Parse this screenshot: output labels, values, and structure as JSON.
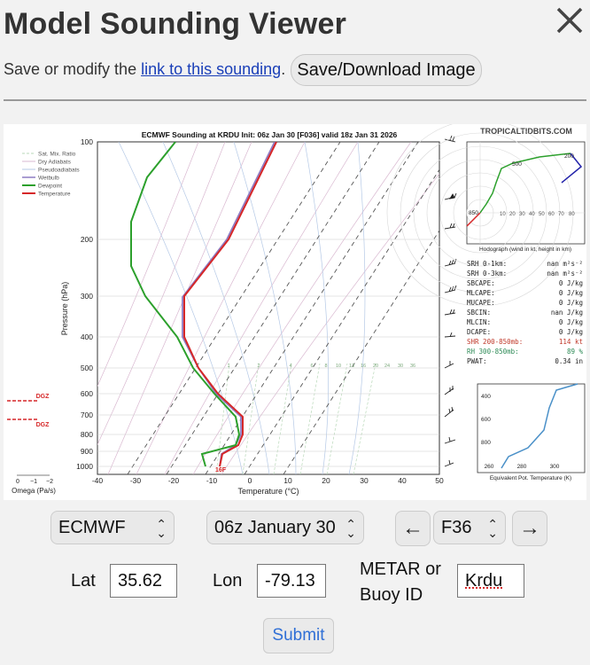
{
  "header": {
    "title": "Model Sounding Viewer",
    "close_glyph": "✕"
  },
  "description": {
    "prefix": "Save or modify the ",
    "link": "link to this sounding",
    "suffix": "."
  },
  "save_button": "Save/Download Image",
  "sounding": {
    "header": "ECMWF Sounding at KRDU Init: 06z Jan 30 [F036] valid 18z Jan 31 2026",
    "watermark": "TROPICALTIDBITS.COM",
    "legend": [
      "Sat. Mix. Ratio",
      "Dry Adiabats",
      "Pseudoadiabats",
      "Wetbulb",
      "Dewpoint",
      "Temperature"
    ],
    "y_label": "Pressure (hPa)",
    "x_label": "Temperature (°C)",
    "pressure_ticks": [
      "100",
      "200",
      "300",
      "400",
      "500",
      "600",
      "700",
      "800",
      "900",
      "1000"
    ],
    "temp_ticks": [
      "-40",
      "-30",
      "-20",
      "-10",
      "0",
      "10",
      "20",
      "30",
      "40",
      "50"
    ],
    "mix_ratio_labels": [
      "1",
      "2",
      "4",
      "6",
      "8",
      "10",
      "13",
      "16",
      "20",
      "24",
      "30",
      "36"
    ],
    "sfc_temp_label": "16F",
    "dgz_label": "DGZ",
    "omega_ticks": [
      "0",
      "−1",
      "−2"
    ],
    "omega_label": "Omega (Pa/s)",
    "hodograph": {
      "caption": "Hodograph (wind in kt, height in km)",
      "ring_labels": [
        "10",
        "20",
        "30",
        "40",
        "50",
        "60",
        "70",
        "80"
      ],
      "height_labels": [
        "850",
        "500",
        "200"
      ]
    },
    "indices": [
      {
        "label": "SRH 0-1km:",
        "value": "nan m²s⁻²",
        "color": "#222222"
      },
      {
        "label": "SRH 0-3km:",
        "value": "nan m²s⁻²",
        "color": "#222222"
      },
      {
        "label": "SBCAPE:",
        "value": "0 J/kg",
        "color": "#222222"
      },
      {
        "label": "MLCAPE:",
        "value": "0 J/kg",
        "color": "#222222"
      },
      {
        "label": "MUCAPE:",
        "value": "0 J/kg",
        "color": "#222222"
      },
      {
        "label": "SBCIN:",
        "value": "nan J/kg",
        "color": "#222222"
      },
      {
        "label": "MLCIN:",
        "value": "0 J/kg",
        "color": "#222222"
      },
      {
        "label": "DCAPE:",
        "value": "0 J/kg",
        "color": "#222222"
      },
      {
        "label": "SHR 200-850mb:",
        "value": "114 kt",
        "color": "#c0392b"
      },
      {
        "label": "RH 300-850mb:",
        "value": "89 %",
        "color": "#2e8b57"
      },
      {
        "label": "PWAT:",
        "value": "0.34 in",
        "color": "#222222"
      }
    ],
    "theta_e": {
      "caption": "Equivalent Pot. Temperature (K)",
      "x_ticks": [
        "260",
        "280",
        "300"
      ],
      "y_ticks": [
        "400",
        "600",
        "800"
      ]
    }
  },
  "controls": {
    "model": "ECMWF",
    "run": "06z January 30",
    "prev_glyph": "←",
    "forecast_hour": "F36",
    "next_glyph": "→",
    "lat_label": "Lat",
    "lat_value": "35.62",
    "lon_label": "Lon",
    "lon_value": "-79.13",
    "metar_label_1": "METAR or",
    "metar_label_2": "Buoy ID",
    "metar_value": "Krdu",
    "submit": "Submit"
  },
  "colors": {
    "temperature": "#d62728",
    "dewpoint": "#2ca02c",
    "wetbulb": "#8e7cc3",
    "link": "#1a3fb8",
    "submit": "#2f6fd6",
    "hodograph": "#6a2c91"
  }
}
